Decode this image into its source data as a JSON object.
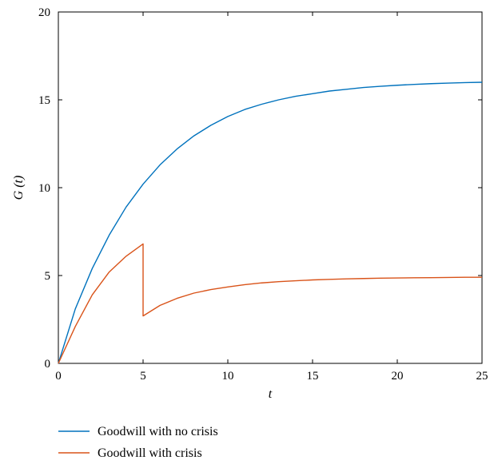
{
  "chart_data": {
    "type": "line",
    "xlabel": "t",
    "ylabel": "G (t)",
    "xlim": [
      0,
      25
    ],
    "ylim": [
      0,
      20
    ],
    "xticks": [
      0,
      5,
      10,
      15,
      20,
      25
    ],
    "yticks": [
      0,
      5,
      10,
      15,
      20
    ],
    "grid": false,
    "legend_position": "bottom-left, below plot",
    "series": [
      {
        "name": "Goodwill with no crisis",
        "color": "#0072BD",
        "x": [
          0,
          1,
          2,
          3,
          4,
          5,
          6,
          7,
          8,
          9,
          10,
          11,
          12,
          13,
          14,
          15,
          16,
          17,
          18,
          19,
          20,
          21,
          22,
          23,
          24,
          25
        ],
        "y": [
          0,
          3.1,
          5.4,
          7.3,
          8.9,
          10.2,
          11.3,
          12.2,
          12.95,
          13.55,
          14.05,
          14.45,
          14.75,
          15.0,
          15.2,
          15.35,
          15.5,
          15.6,
          15.7,
          15.77,
          15.83,
          15.88,
          15.92,
          15.95,
          15.98,
          16.0
        ]
      },
      {
        "name": "Goodwill with crisis",
        "color": "#D95319",
        "x": [
          0,
          1,
          2,
          3,
          4,
          5,
          5,
          6,
          7,
          8,
          9,
          10,
          11,
          12,
          13,
          14,
          15,
          16,
          17,
          18,
          19,
          20,
          21,
          22,
          23,
          24,
          25
        ],
        "y": [
          0,
          2.1,
          3.9,
          5.2,
          6.1,
          6.8,
          2.7,
          3.3,
          3.7,
          4.0,
          4.2,
          4.35,
          4.48,
          4.58,
          4.65,
          4.7,
          4.75,
          4.78,
          4.81,
          4.83,
          4.85,
          4.86,
          4.87,
          4.88,
          4.89,
          4.9,
          4.9
        ]
      }
    ]
  }
}
